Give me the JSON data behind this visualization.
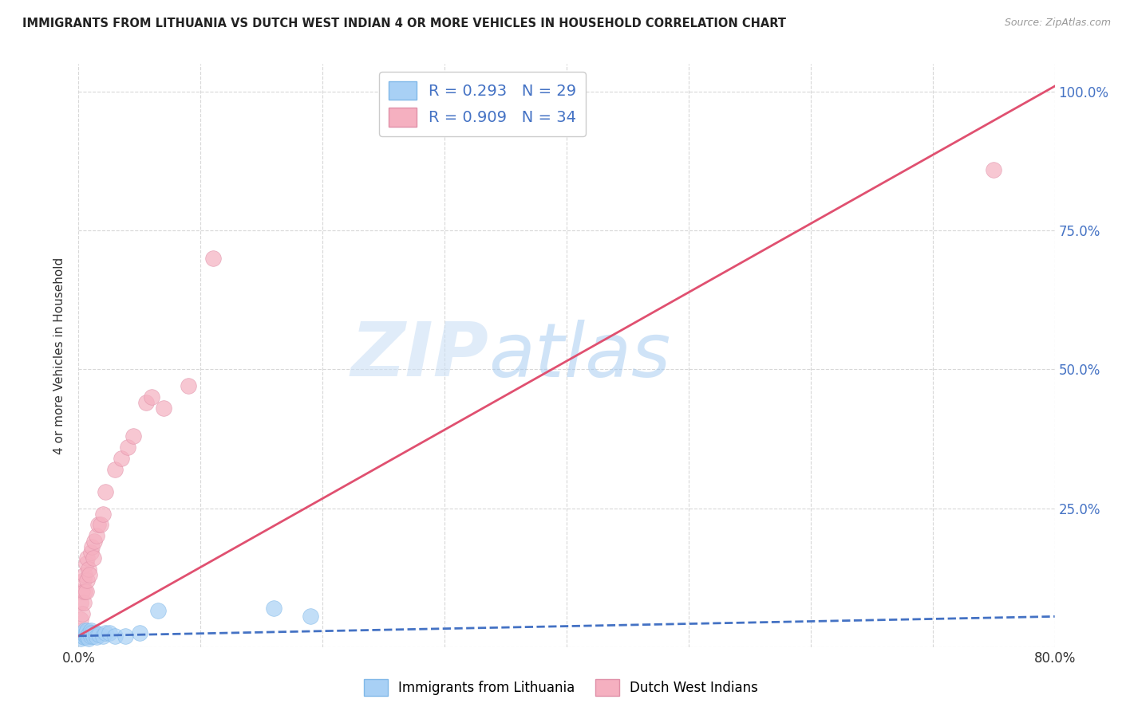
{
  "title": "IMMIGRANTS FROM LITHUANIA VS DUTCH WEST INDIAN 4 OR MORE VEHICLES IN HOUSEHOLD CORRELATION CHART",
  "source": "Source: ZipAtlas.com",
  "xlabel": "",
  "ylabel": "4 or more Vehicles in Household",
  "xlim": [
    0,
    0.8
  ],
  "ylim": [
    0,
    1.05
  ],
  "xticks": [
    0.0,
    0.1,
    0.2,
    0.3,
    0.4,
    0.5,
    0.6,
    0.7,
    0.8
  ],
  "xticklabels": [
    "0.0%",
    "",
    "",
    "",
    "",
    "",
    "",
    "",
    "80.0%"
  ],
  "yticks_left": [
    0.0,
    0.25,
    0.5,
    0.75,
    1.0
  ],
  "yticklabels_left": [
    "",
    "",
    "",
    "",
    ""
  ],
  "yticks_right": [
    0.0,
    0.25,
    0.5,
    0.75,
    1.0
  ],
  "yticklabels_right": [
    "",
    "25.0%",
    "50.0%",
    "75.0%",
    "100.0%"
  ],
  "legend_label1": "Immigrants from Lithuania",
  "legend_label2": "Dutch West Indians",
  "R1": 0.293,
  "N1": 29,
  "R2": 0.909,
  "N2": 34,
  "color1": "#a8d0f5",
  "color2": "#f5b0c0",
  "trendline1_color": "#4472c4",
  "trendline2_color": "#e05070",
  "background_color": "#ffffff",
  "scatter1_x": [
    0.002,
    0.003,
    0.004,
    0.004,
    0.005,
    0.005,
    0.006,
    0.006,
    0.007,
    0.007,
    0.008,
    0.008,
    0.009,
    0.01,
    0.01,
    0.011,
    0.012,
    0.014,
    0.015,
    0.017,
    0.02,
    0.022,
    0.025,
    0.03,
    0.038,
    0.05,
    0.065,
    0.16,
    0.19
  ],
  "scatter1_y": [
    0.015,
    0.02,
    0.025,
    0.018,
    0.022,
    0.03,
    0.018,
    0.025,
    0.02,
    0.03,
    0.022,
    0.015,
    0.025,
    0.02,
    0.03,
    0.025,
    0.02,
    0.025,
    0.018,
    0.022,
    0.02,
    0.025,
    0.025,
    0.02,
    0.02,
    0.025,
    0.065,
    0.07,
    0.055
  ],
  "scatter2_x": [
    0.001,
    0.002,
    0.002,
    0.003,
    0.003,
    0.004,
    0.004,
    0.005,
    0.005,
    0.006,
    0.006,
    0.007,
    0.007,
    0.008,
    0.009,
    0.01,
    0.011,
    0.012,
    0.013,
    0.015,
    0.016,
    0.018,
    0.02,
    0.022,
    0.03,
    0.035,
    0.04,
    0.045,
    0.055,
    0.06,
    0.07,
    0.09,
    0.11,
    0.75
  ],
  "scatter2_y": [
    0.03,
    0.05,
    0.08,
    0.06,
    0.1,
    0.12,
    0.08,
    0.13,
    0.1,
    0.15,
    0.1,
    0.12,
    0.16,
    0.14,
    0.13,
    0.17,
    0.18,
    0.16,
    0.19,
    0.2,
    0.22,
    0.22,
    0.24,
    0.28,
    0.32,
    0.34,
    0.36,
    0.38,
    0.44,
    0.45,
    0.43,
    0.47,
    0.7,
    0.86
  ],
  "trendline1_x": [
    0.0,
    0.8
  ],
  "trendline1_y": [
    0.02,
    0.055
  ],
  "trendline2_x": [
    0.0,
    0.8
  ],
  "trendline2_y": [
    0.02,
    1.01
  ]
}
